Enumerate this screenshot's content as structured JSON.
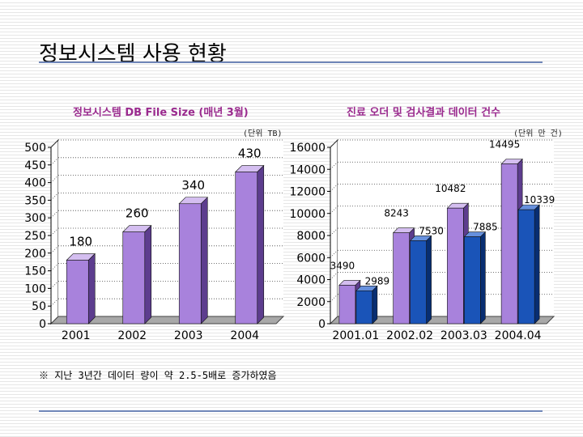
{
  "page_title": "정보시스템 사용 현황",
  "footnote": "※ 지난 3년간 데이터 량이 약 2.5-5배로 증가하였음",
  "colors": {
    "purple_front": "#a882dc",
    "purple_top": "#d4bef0",
    "purple_side": "#5d3d8e",
    "blue_front": "#1a54b8",
    "blue_top": "#6690dd",
    "blue_side": "#082e72",
    "floor": "#a8a8a8",
    "chart_title": "#9a2a8e"
  },
  "chart_data": [
    {
      "type": "bar",
      "title": "정보시스템 DB File Size (매년 3월)",
      "unit_label": "(단위 TB)",
      "categories": [
        "2001",
        "2002",
        "2003",
        "2004"
      ],
      "series": [
        {
          "name": "DB File Size",
          "values": [
            180,
            260,
            340,
            430
          ],
          "labels": [
            "180",
            "260",
            "340",
            "430"
          ]
        }
      ],
      "ylim": [
        0,
        500
      ],
      "ytick_labels": [
        "0",
        "50",
        "100",
        "150",
        "200",
        "250",
        "300",
        "350",
        "400",
        "450",
        "500"
      ],
      "grid": true
    },
    {
      "type": "bar",
      "title": "진료 오더 및 검사결과 데이터 건수",
      "unit_label": "(단위 만 건)",
      "categories": [
        "2001.01",
        "2002.02",
        "2003.03",
        "2004.04"
      ],
      "series": [
        {
          "name": "진료 오더",
          "values": [
            3490,
            8243,
            10482,
            14495
          ],
          "labels": [
            "3490",
            "8243",
            "10482",
            "14495"
          ]
        },
        {
          "name": "검사결과",
          "values": [
            2989,
            7530,
            7885,
            10339
          ],
          "labels": [
            "2989",
            "7530",
            "7885",
            "10339"
          ]
        }
      ],
      "ylim": [
        0,
        16000
      ],
      "ytick_labels": [
        "0",
        "2000",
        "4000",
        "6000",
        "8000",
        "10000",
        "12000",
        "14000",
        "16000"
      ],
      "grid": true
    }
  ]
}
